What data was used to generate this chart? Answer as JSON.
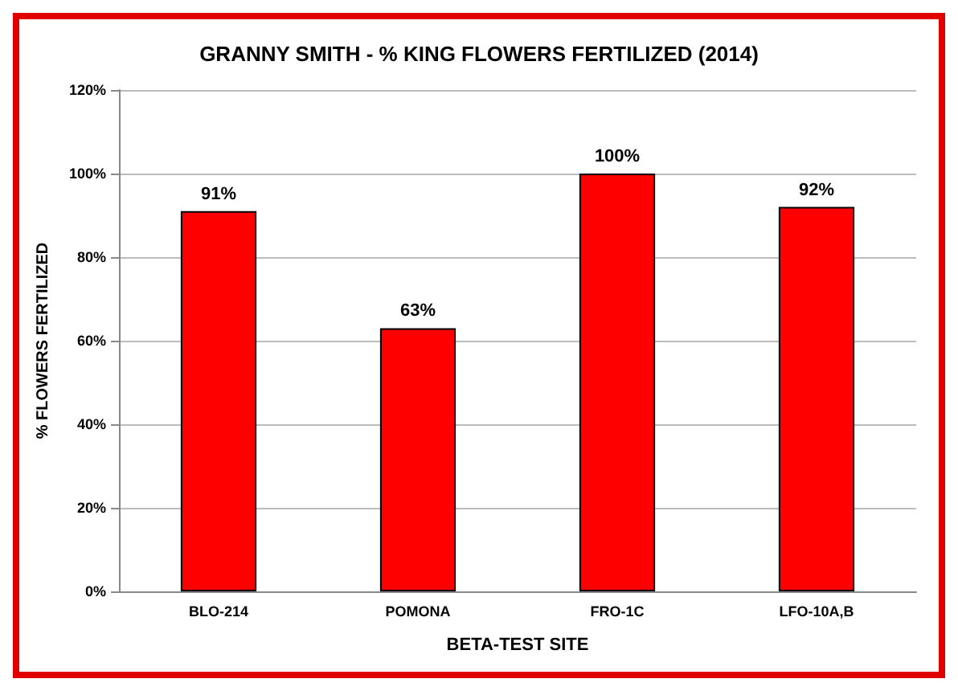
{
  "chart_data": {
    "type": "bar",
    "title": "GRANNY SMITH - % KING FLOWERS FERTILIZED (2014)",
    "xlabel": "BETA-TEST SITE",
    "ylabel": "% FLOWERS FERTILIZED",
    "categories": [
      "BLO-214",
      "POMONA",
      "FRO-1C",
      "LFO-10A,B"
    ],
    "values": [
      91,
      63,
      100,
      92
    ],
    "value_labels": [
      "91%",
      "63%",
      "100%",
      "92%"
    ],
    "color": "#ff0000",
    "ylim": [
      0,
      120
    ],
    "yticks": [
      {
        "value": 0,
        "label": "0%"
      },
      {
        "value": 20,
        "label": "20%"
      },
      {
        "value": 40,
        "label": "40%"
      },
      {
        "value": 60,
        "label": "60%"
      },
      {
        "value": 80,
        "label": "80%"
      },
      {
        "value": 100,
        "label": "100%"
      },
      {
        "value": 120,
        "label": "120%"
      }
    ],
    "grid": "y"
  }
}
